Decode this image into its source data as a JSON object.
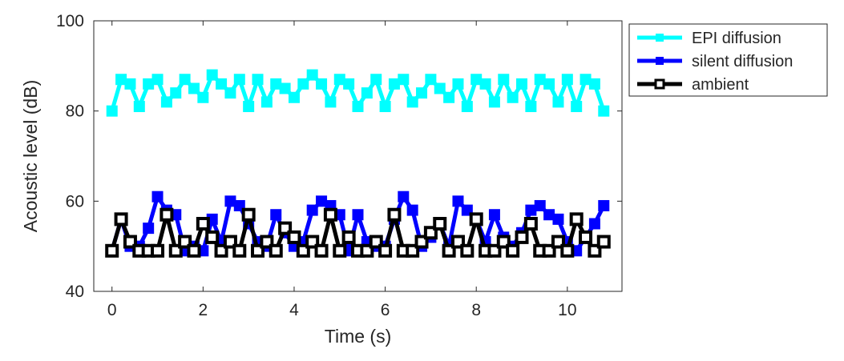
{
  "chart_data": {
    "type": "line",
    "xlabel": "Time (s)",
    "ylabel": "Acoustic level (dB)",
    "xlim": [
      -0.4,
      11.2
    ],
    "ylim": [
      40,
      100
    ],
    "xticks": [
      0,
      2,
      4,
      6,
      8,
      10
    ],
    "yticks": [
      40,
      60,
      80,
      100
    ],
    "grid": false,
    "legend_position": "outside-top-right",
    "x": [
      0,
      0.2,
      0.4,
      0.6,
      0.8,
      1.0,
      1.2,
      1.4,
      1.6,
      1.8,
      2.0,
      2.2,
      2.4,
      2.6,
      2.8,
      3.0,
      3.2,
      3.4,
      3.6,
      3.8,
      4.0,
      4.2,
      4.4,
      4.6,
      4.8,
      5.0,
      5.2,
      5.4,
      5.6,
      5.8,
      6.0,
      6.2,
      6.4,
      6.6,
      6.8,
      7.0,
      7.2,
      7.4,
      7.6,
      7.8,
      8.0,
      8.2,
      8.4,
      8.6,
      8.8,
      9.0,
      9.2,
      9.4,
      9.6,
      9.8,
      10.0,
      10.2,
      10.4,
      10.6,
      10.8
    ],
    "series": [
      {
        "name": "EPI diffusion",
        "color": "#00ffff",
        "marker": "square-filled",
        "values": [
          80,
          87,
          86,
          81,
          86,
          87,
          82,
          84,
          87,
          85,
          83,
          88,
          86,
          84,
          87,
          81,
          87,
          82,
          86,
          85,
          83,
          86,
          88,
          86,
          82,
          87,
          86,
          81,
          84,
          87,
          81,
          86,
          87,
          82,
          84,
          87,
          85,
          83,
          86,
          81,
          87,
          86,
          82,
          87,
          83,
          86,
          81,
          87,
          86,
          82,
          87,
          81,
          87,
          86,
          80
        ]
      },
      {
        "name": "silent diffusion",
        "color": "#0000ff",
        "marker": "square-filled",
        "values": [
          49,
          56,
          50,
          50,
          54,
          61,
          58,
          57,
          49,
          50,
          49,
          56,
          51,
          60,
          59,
          55,
          51,
          50,
          57,
          53,
          50,
          51,
          58,
          60,
          59,
          57,
          49,
          57,
          51,
          50,
          50,
          56,
          61,
          58,
          50,
          52,
          55,
          50,
          60,
          58,
          56,
          51,
          57,
          52,
          50,
          53,
          58,
          59,
          57,
          56,
          51,
          49,
          52,
          55,
          59
        ]
      },
      {
        "name": "ambient",
        "color": "#000000",
        "marker": "square-open",
        "values": [
          49,
          56,
          51,
          49,
          49,
          49,
          57,
          49,
          51,
          49,
          55,
          52,
          49,
          51,
          49,
          57,
          49,
          51,
          49,
          54,
          52,
          49,
          51,
          49,
          57,
          49,
          52,
          49,
          49,
          51,
          49,
          57,
          49,
          49,
          51,
          53,
          55,
          49,
          51,
          49,
          56,
          49,
          49,
          51,
          49,
          52,
          55,
          49,
          49,
          51,
          49,
          56,
          52,
          49,
          51
        ]
      }
    ]
  }
}
